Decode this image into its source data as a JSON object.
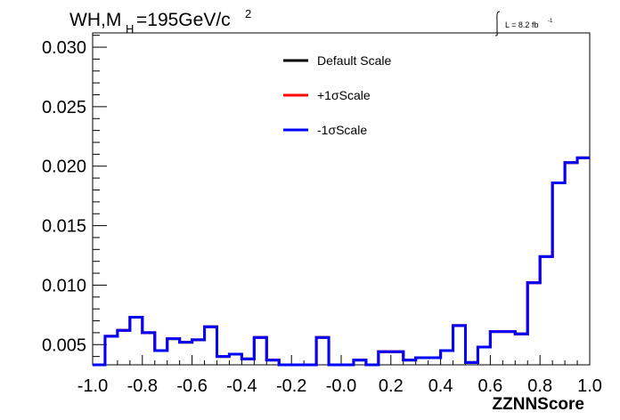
{
  "chart_data": {
    "type": "line",
    "title_main": "WH,M",
    "title_sub": "H",
    "title_rest": "=195GeV/c",
    "title_sup": "2",
    "lumi_label": "L = 8.2 fb",
    "lumi_sup": "-1",
    "xlabel": "ZZNNScore",
    "xlim": [
      -1.0,
      1.0
    ],
    "ylim": [
      0.0033,
      0.0312
    ],
    "x_ticks": [
      -1.0,
      -0.8,
      -0.6,
      -0.4,
      -0.2,
      0.0,
      0.2,
      0.4,
      0.6,
      0.8,
      1.0
    ],
    "x_tick_labels": [
      "-1.0",
      "-0.8",
      "-0.6",
      "-0.4",
      "-0.2",
      "-0.0",
      "0.2",
      "0.4",
      "0.6",
      "0.8",
      "1.0"
    ],
    "y_ticks": [
      0.005,
      0.01,
      0.015,
      0.02,
      0.025,
      0.03
    ],
    "y_tick_labels": [
      "0.005",
      "0.010",
      "0.015",
      "0.020",
      "0.025",
      "0.030"
    ],
    "bin_edges": [
      -1.0,
      -0.95,
      -0.9,
      -0.85,
      -0.8,
      -0.75,
      -0.7,
      -0.65,
      -0.6,
      -0.55,
      -0.5,
      -0.45,
      -0.4,
      -0.35,
      -0.3,
      -0.25,
      -0.2,
      -0.15,
      -0.1,
      -0.05,
      0.0,
      0.05,
      0.1,
      0.15,
      0.2,
      0.25,
      0.3,
      0.35,
      0.4,
      0.45,
      0.5,
      0.55,
      0.6,
      0.65,
      0.7,
      0.75,
      0.8,
      0.85,
      0.9,
      0.95,
      1.0
    ],
    "grid": false,
    "legend_position": "top-center",
    "series": [
      {
        "name": "Default Scale",
        "color": "#000000",
        "values": [
          0.0033,
          0.0057,
          0.0062,
          0.0073,
          0.006,
          0.0045,
          0.0055,
          0.0052,
          0.0054,
          0.0065,
          0.004,
          0.0042,
          0.0038,
          0.0056,
          0.0037,
          0.0033,
          0.0033,
          0.0033,
          0.0056,
          0.0033,
          0.0033,
          0.0037,
          0.0033,
          0.0044,
          0.0044,
          0.0037,
          0.0039,
          0.0039,
          0.0045,
          0.0066,
          0.0035,
          0.0048,
          0.0061,
          0.0061,
          0.0059,
          0.0102,
          0.0124,
          0.0186,
          0.0203,
          0.0207
        ]
      },
      {
        "name": "+1σScale",
        "color": "#ff0000",
        "values": [
          0.0033,
          0.0057,
          0.0062,
          0.0073,
          0.006,
          0.0045,
          0.0055,
          0.0052,
          0.0054,
          0.0065,
          0.004,
          0.0042,
          0.0038,
          0.0056,
          0.0037,
          0.0033,
          0.0033,
          0.0033,
          0.0056,
          0.0033,
          0.0033,
          0.0037,
          0.0033,
          0.0044,
          0.0044,
          0.0037,
          0.0039,
          0.0039,
          0.0045,
          0.0066,
          0.0035,
          0.0048,
          0.0061,
          0.0061,
          0.0059,
          0.0102,
          0.0124,
          0.0186,
          0.0203,
          0.0207
        ]
      },
      {
        "name": "-1σScale",
        "color": "#0000ff",
        "values": [
          0.0033,
          0.0057,
          0.0062,
          0.0073,
          0.006,
          0.0045,
          0.0055,
          0.0052,
          0.0054,
          0.0065,
          0.004,
          0.0042,
          0.0038,
          0.0056,
          0.0037,
          0.0033,
          0.0033,
          0.0033,
          0.0056,
          0.0033,
          0.0033,
          0.0037,
          0.0033,
          0.0044,
          0.0044,
          0.0037,
          0.0039,
          0.0039,
          0.0045,
          0.0066,
          0.0035,
          0.0048,
          0.0061,
          0.0061,
          0.0059,
          0.0102,
          0.0124,
          0.0186,
          0.0203,
          0.0207
        ]
      }
    ]
  }
}
